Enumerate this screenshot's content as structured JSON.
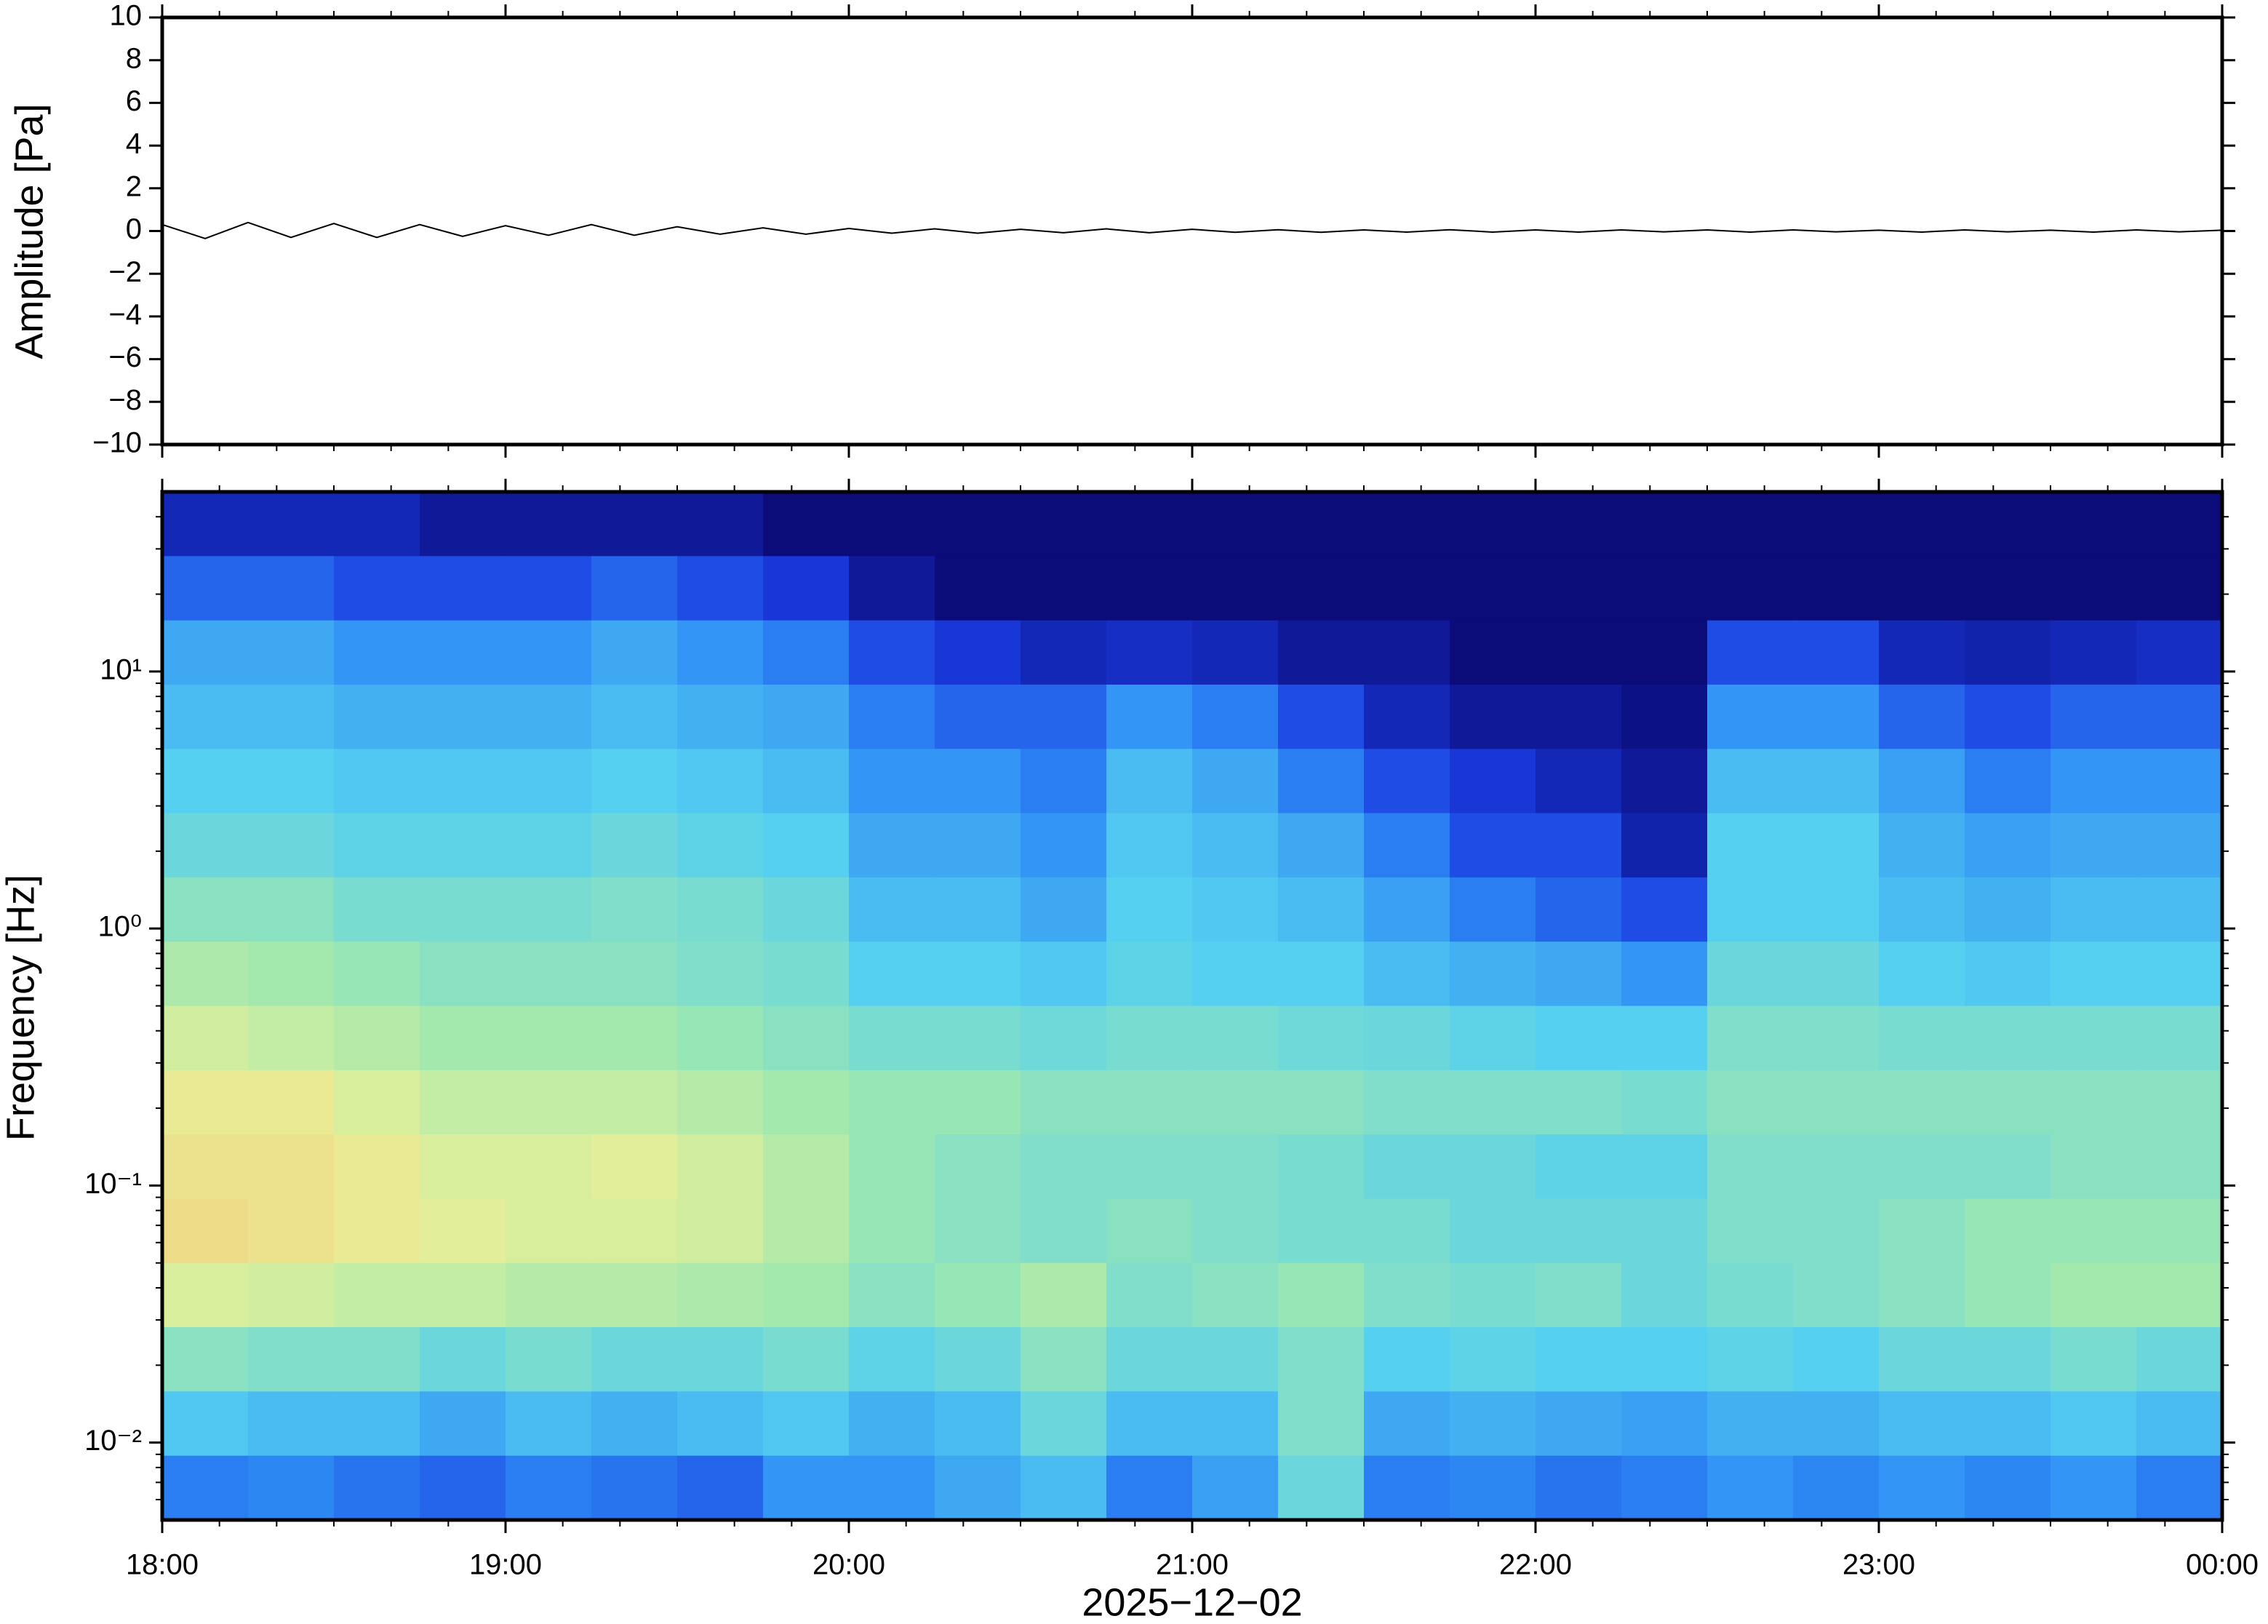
{
  "chart_data": [
    {
      "type": "line",
      "ylabel": "Amplitude [Pa]",
      "xlim": [
        18,
        24
      ],
      "ylim": [
        -10,
        10
      ],
      "yticks": [
        10,
        8,
        6,
        4,
        2,
        0,
        {
          "value": -2,
          "label": "−2"
        },
        {
          "value": -4,
          "label": "−4"
        },
        {
          "value": -6,
          "label": "−6"
        },
        {
          "value": -8,
          "label": "−8"
        },
        {
          "value": -10,
          "label": "−10"
        }
      ],
      "x": [
        18,
        18.125,
        18.25,
        18.375,
        18.5,
        18.625,
        18.75,
        18.875,
        19,
        19.125,
        19.25,
        19.375,
        19.5,
        19.625,
        19.75,
        19.875,
        20,
        20.125,
        20.25,
        20.375,
        20.5,
        20.625,
        20.75,
        20.875,
        21,
        21.125,
        21.25,
        21.375,
        21.5,
        21.625,
        21.75,
        21.875,
        22,
        22.125,
        22.25,
        22.375,
        22.5,
        22.625,
        22.75,
        22.875,
        23,
        23.125,
        23.25,
        23.375,
        23.5,
        23.625,
        23.75,
        23.875,
        24
      ],
      "series": [
        {
          "color": "#000000",
          "values": [
            0.3,
            -0.35,
            0.4,
            -0.3,
            0.35,
            -0.3,
            0.3,
            -0.25,
            0.25,
            -0.2,
            0.3,
            -0.2,
            0.2,
            -0.15,
            0.15,
            -0.15,
            0.12,
            -0.1,
            0.1,
            -0.1,
            0.08,
            -0.08,
            0.1,
            -0.08,
            0.08,
            -0.06,
            0.06,
            -0.06,
            0.05,
            -0.05,
            0.06,
            -0.05,
            0.05,
            -0.05,
            0.05,
            -0.04,
            0.05,
            -0.05,
            0.05,
            -0.04,
            0.04,
            -0.05,
            0.05,
            -0.04,
            0.04,
            -0.05,
            0.05,
            -0.04,
            0.04
          ]
        }
      ]
    },
    {
      "type": "heatmap",
      "ylabel": "Frequency [Hz]",
      "xlabel": "2025−12−02",
      "log_y": true,
      "xlim": [
        18,
        24
      ],
      "ylim": [
        0.005,
        50
      ],
      "xticks": [
        {
          "value": 18,
          "label": "18:00"
        },
        {
          "value": 19,
          "label": "19:00"
        },
        {
          "value": 20,
          "label": "20:00"
        },
        {
          "value": 21,
          "label": "21:00"
        },
        {
          "value": 22,
          "label": "22:00"
        },
        {
          "value": 23,
          "label": "23:00"
        },
        {
          "value": 24,
          "label": "00:00"
        }
      ],
      "yticks": [
        {
          "value": 10,
          "label": "10¹"
        },
        {
          "value": 1,
          "label": "10⁰"
        },
        {
          "value": 0.1,
          "label": "10⁻¹"
        },
        {
          "value": 0.01,
          "label": "10⁻²"
        }
      ],
      "zlim": [
        0,
        1
      ],
      "colormap": [
        "#0b0b7a",
        "#1a3ce0",
        "#2f8ef5",
        "#55d0f0",
        "#9de8b0",
        "#e8ef98",
        "#f8c070"
      ],
      "z": [
        [
          0.1,
          0.1,
          0.1,
          0.05,
          0.05,
          0.05,
          0.05,
          0,
          0,
          0,
          0,
          0,
          0,
          0,
          0,
          0,
          0,
          0,
          0,
          0,
          0,
          0,
          0,
          0
        ],
        [
          0.25,
          0.25,
          0.2,
          0.2,
          0.2,
          0.25,
          0.2,
          0.15,
          0.05,
          0,
          0,
          0,
          0,
          0,
          0,
          0,
          0,
          0,
          0,
          0,
          0,
          0,
          0,
          0
        ],
        [
          0.4,
          0.4,
          0.35,
          0.35,
          0.35,
          0.4,
          0.35,
          0.3,
          0.2,
          0.15,
          0.1,
          0.12,
          0.1,
          0.05,
          0.05,
          0,
          0,
          0,
          0.2,
          0.2,
          0.1,
          0.08,
          0.1,
          0.12
        ],
        [
          0.45,
          0.45,
          0.42,
          0.42,
          0.42,
          0.45,
          0.42,
          0.4,
          0.3,
          0.25,
          0.25,
          0.35,
          0.3,
          0.2,
          0.1,
          0.05,
          0.05,
          0.02,
          0.35,
          0.35,
          0.25,
          0.2,
          0.25,
          0.25
        ],
        [
          0.5,
          0.5,
          0.48,
          0.48,
          0.48,
          0.5,
          0.48,
          0.45,
          0.35,
          0.35,
          0.3,
          0.45,
          0.4,
          0.3,
          0.2,
          0.15,
          0.1,
          0.05,
          0.45,
          0.45,
          0.38,
          0.3,
          0.35,
          0.35
        ],
        [
          0.55,
          0.55,
          0.52,
          0.52,
          0.52,
          0.55,
          0.52,
          0.5,
          0.4,
          0.4,
          0.35,
          0.48,
          0.45,
          0.4,
          0.3,
          0.2,
          0.2,
          0.08,
          0.5,
          0.5,
          0.42,
          0.38,
          0.4,
          0.4
        ],
        [
          0.62,
          0.62,
          0.58,
          0.58,
          0.58,
          0.6,
          0.58,
          0.55,
          0.45,
          0.45,
          0.4,
          0.5,
          0.48,
          0.45,
          0.38,
          0.3,
          0.25,
          0.2,
          0.5,
          0.5,
          0.45,
          0.42,
          0.45,
          0.45
        ],
        [
          0.7,
          0.68,
          0.65,
          0.62,
          0.62,
          0.62,
          0.6,
          0.58,
          0.5,
          0.5,
          0.48,
          0.52,
          0.5,
          0.5,
          0.45,
          0.42,
          0.4,
          0.35,
          0.55,
          0.55,
          0.5,
          0.48,
          0.5,
          0.5
        ],
        [
          0.78,
          0.75,
          0.72,
          0.68,
          0.68,
          0.68,
          0.65,
          0.62,
          0.58,
          0.58,
          0.56,
          0.58,
          0.58,
          0.56,
          0.55,
          0.52,
          0.5,
          0.5,
          0.6,
          0.6,
          0.58,
          0.58,
          0.58,
          0.58
        ],
        [
          0.85,
          0.85,
          0.8,
          0.75,
          0.75,
          0.75,
          0.72,
          0.68,
          0.65,
          0.65,
          0.62,
          0.62,
          0.62,
          0.62,
          0.6,
          0.6,
          0.6,
          0.58,
          0.62,
          0.62,
          0.62,
          0.62,
          0.62,
          0.62
        ],
        [
          0.88,
          0.88,
          0.85,
          0.8,
          0.8,
          0.82,
          0.78,
          0.72,
          0.65,
          0.62,
          0.6,
          0.6,
          0.6,
          0.58,
          0.55,
          0.55,
          0.52,
          0.52,
          0.6,
          0.6,
          0.6,
          0.6,
          0.62,
          0.62
        ],
        [
          0.9,
          0.88,
          0.85,
          0.82,
          0.8,
          0.8,
          0.78,
          0.72,
          0.65,
          0.62,
          0.6,
          0.62,
          0.6,
          0.58,
          0.58,
          0.55,
          0.55,
          0.55,
          0.6,
          0.6,
          0.62,
          0.65,
          0.65,
          0.65
        ],
        [
          0.8,
          0.78,
          0.75,
          0.75,
          0.72,
          0.72,
          0.7,
          0.68,
          0.62,
          0.65,
          0.7,
          0.6,
          0.62,
          0.65,
          0.6,
          0.58,
          0.6,
          0.55,
          0.58,
          0.6,
          0.62,
          0.65,
          0.68,
          0.68
        ],
        [
          0.62,
          0.6,
          0.6,
          0.55,
          0.58,
          0.55,
          0.55,
          0.58,
          0.52,
          0.55,
          0.62,
          0.55,
          0.55,
          0.6,
          0.5,
          0.52,
          0.5,
          0.5,
          0.52,
          0.5,
          0.55,
          0.55,
          0.58,
          0.55
        ],
        [
          0.48,
          0.45,
          0.45,
          0.4,
          0.45,
          0.42,
          0.45,
          0.48,
          0.42,
          0.45,
          0.55,
          0.45,
          0.45,
          0.6,
          0.4,
          0.42,
          0.4,
          0.38,
          0.42,
          0.42,
          0.45,
          0.45,
          0.48,
          0.45
        ],
        [
          0.3,
          0.32,
          0.28,
          0.25,
          0.3,
          0.28,
          0.25,
          0.35,
          0.35,
          0.4,
          0.45,
          0.3,
          0.38,
          0.55,
          0.3,
          0.32,
          0.28,
          0.3,
          0.35,
          0.32,
          0.35,
          0.32,
          0.35,
          0.3
        ]
      ]
    }
  ]
}
